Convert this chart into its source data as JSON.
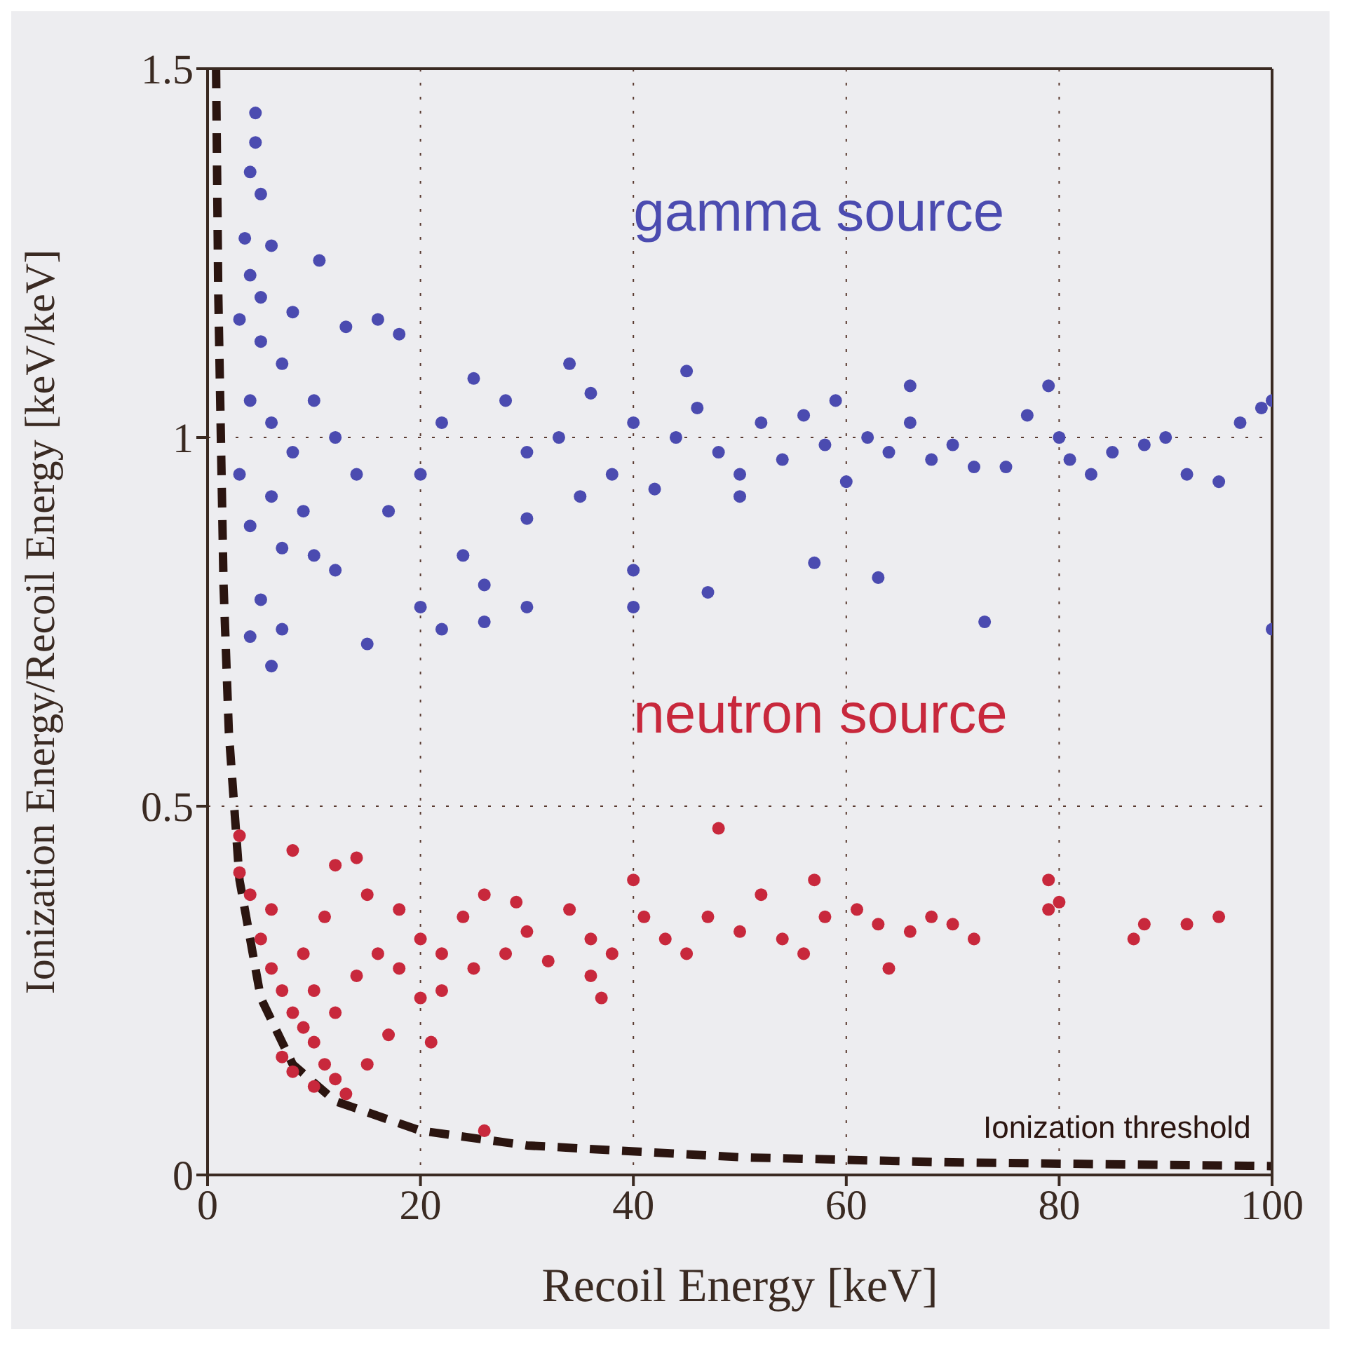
{
  "chart_data": {
    "type": "scatter",
    "xlabel": "Recoil Energy [keV]",
    "ylabel": "Ionization Energy/Recoil Energy [keV/keV]",
    "xlim": [
      0,
      100
    ],
    "xticks": [
      0,
      20,
      40,
      60,
      80,
      100
    ],
    "ylim": [
      0,
      1.5
    ],
    "yticks": [
      0,
      0.5,
      1,
      1.5
    ],
    "grid": true,
    "marker": "circle",
    "series": [
      {
        "name": "gamma source",
        "color": "#4b4bb0",
        "x": [
          4.5,
          4.5,
          4,
          5,
          3.5,
          6,
          4,
          5,
          10.5,
          8,
          3,
          5,
          7,
          13,
          16,
          18,
          4,
          6,
          8,
          10,
          12,
          14,
          9,
          6,
          3,
          4,
          7,
          10,
          12,
          5,
          7,
          6,
          4,
          15,
          20,
          22,
          26,
          26,
          24,
          30,
          17,
          20,
          22,
          25,
          28,
          30,
          33,
          36,
          38,
          40,
          42,
          44,
          46,
          48,
          50,
          52,
          54,
          56,
          58,
          60,
          62,
          64,
          66,
          68,
          70,
          72,
          75,
          77,
          79,
          80,
          81,
          83,
          85,
          88,
          90,
          92,
          95,
          97,
          99,
          100,
          100,
          73,
          40,
          40,
          47,
          57,
          63,
          34,
          45,
          59,
          66,
          30,
          50,
          35
        ],
        "values": [
          1.44,
          1.4,
          1.36,
          1.33,
          1.27,
          1.26,
          1.22,
          1.19,
          1.24,
          1.17,
          1.16,
          1.13,
          1.1,
          1.15,
          1.16,
          1.14,
          1.05,
          1.02,
          0.98,
          1.05,
          1,
          0.95,
          0.9,
          0.92,
          0.95,
          0.88,
          0.85,
          0.84,
          0.82,
          0.78,
          0.74,
          0.69,
          0.73,
          0.72,
          0.77,
          0.74,
          0.75,
          0.8,
          0.84,
          0.77,
          0.9,
          0.95,
          1.02,
          1.08,
          1.05,
          0.98,
          1,
          1.06,
          0.95,
          1.02,
          0.93,
          1,
          1.04,
          0.98,
          0.95,
          1.02,
          0.97,
          1.03,
          0.99,
          0.94,
          1,
          0.98,
          1.02,
          0.97,
          0.99,
          0.96,
          0.96,
          1.03,
          1.07,
          1,
          0.97,
          0.95,
          0.98,
          0.99,
          1,
          0.95,
          0.94,
          1.02,
          1.04,
          1.05,
          0.74,
          0.75,
          0.82,
          0.77,
          0.79,
          0.83,
          0.81,
          1.1,
          1.09,
          1.05,
          1.07,
          0.89,
          0.92,
          0.92
        ]
      },
      {
        "name": "neutron source",
        "color": "#c8283c",
        "x": [
          3,
          3,
          4,
          5,
          6,
          7,
          8,
          9,
          10,
          11,
          12,
          8,
          7,
          10,
          13,
          9,
          11,
          12,
          8,
          14,
          15,
          6,
          10,
          12,
          14,
          16,
          18,
          20,
          22,
          24,
          25,
          28,
          30,
          32,
          34,
          36,
          38,
          15,
          17,
          20,
          22,
          26,
          21,
          40,
          41,
          43,
          45,
          47,
          48,
          50,
          52,
          54,
          56,
          57,
          58,
          61,
          63,
          64,
          66,
          68,
          70,
          72,
          79,
          79,
          80,
          87,
          88,
          92,
          95,
          18,
          26,
          29,
          36,
          37
        ],
        "values": [
          0.41,
          0.46,
          0.38,
          0.32,
          0.28,
          0.25,
          0.22,
          0.2,
          0.18,
          0.15,
          0.13,
          0.14,
          0.16,
          0.12,
          0.11,
          0.3,
          0.35,
          0.42,
          0.44,
          0.43,
          0.38,
          0.36,
          0.25,
          0.22,
          0.27,
          0.3,
          0.28,
          0.32,
          0.3,
          0.35,
          0.28,
          0.3,
          0.33,
          0.29,
          0.36,
          0.32,
          0.3,
          0.15,
          0.19,
          0.24,
          0.25,
          0.06,
          0.18,
          0.4,
          0.35,
          0.32,
          0.3,
          0.35,
          0.47,
          0.33,
          0.38,
          0.32,
          0.3,
          0.4,
          0.35,
          0.36,
          0.34,
          0.28,
          0.33,
          0.35,
          0.34,
          0.32,
          0.36,
          0.4,
          0.37,
          0.32,
          0.34,
          0.34,
          0.35,
          0.36,
          0.38,
          0.37,
          0.27,
          0.24
        ]
      },
      {
        "name": "Ionization threshold",
        "type": "line",
        "color": "#2b1510",
        "line_style": "dashed",
        "marker": "none",
        "x": [
          0.8,
          1,
          1.5,
          2,
          3,
          5,
          8,
          12,
          20,
          30,
          50,
          70,
          100
        ],
        "values": [
          1.5,
          1.2,
          0.8,
          0.6,
          0.4,
          0.24,
          0.15,
          0.1,
          0.06,
          0.04,
          0.024,
          0.017,
          0.012
        ]
      }
    ]
  }
}
